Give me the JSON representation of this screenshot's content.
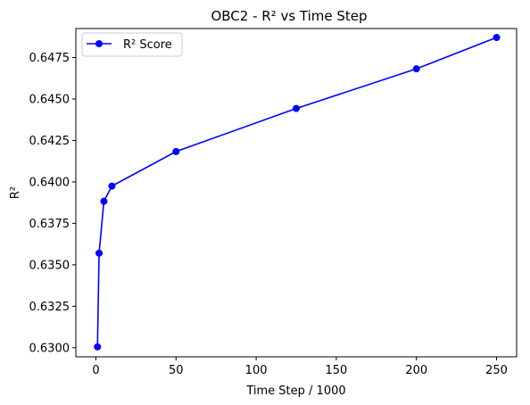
{
  "chart_data": {
    "type": "line",
    "title": "OBC2 - R² vs Time Step",
    "xlabel": "Time Step / 1000",
    "ylabel": "R²",
    "xlim": [
      -12.5,
      262.5
    ],
    "ylim": [
      0.62945,
      0.64925
    ],
    "x_ticks": [
      0,
      50,
      100,
      150,
      200,
      250
    ],
    "y_ticks": [
      0.63,
      0.6325,
      0.635,
      0.6375,
      0.64,
      0.6425,
      0.645,
      0.6475
    ],
    "y_tick_labels": [
      "0.6300",
      "0.6325",
      "0.6350",
      "0.6375",
      "0.6400",
      "0.6425",
      "0.6450",
      "0.6475"
    ],
    "grid": false,
    "legend_position": "top-left",
    "series": [
      {
        "name": "R² Score",
        "color": "#0000ff",
        "marker": "circle",
        "x": [
          1,
          2,
          5,
          10,
          50,
          125,
          200,
          250
        ],
        "y": [
          0.63005,
          0.6357,
          0.63883,
          0.63975,
          0.64183,
          0.64443,
          0.64682,
          0.64871
        ]
      }
    ]
  }
}
